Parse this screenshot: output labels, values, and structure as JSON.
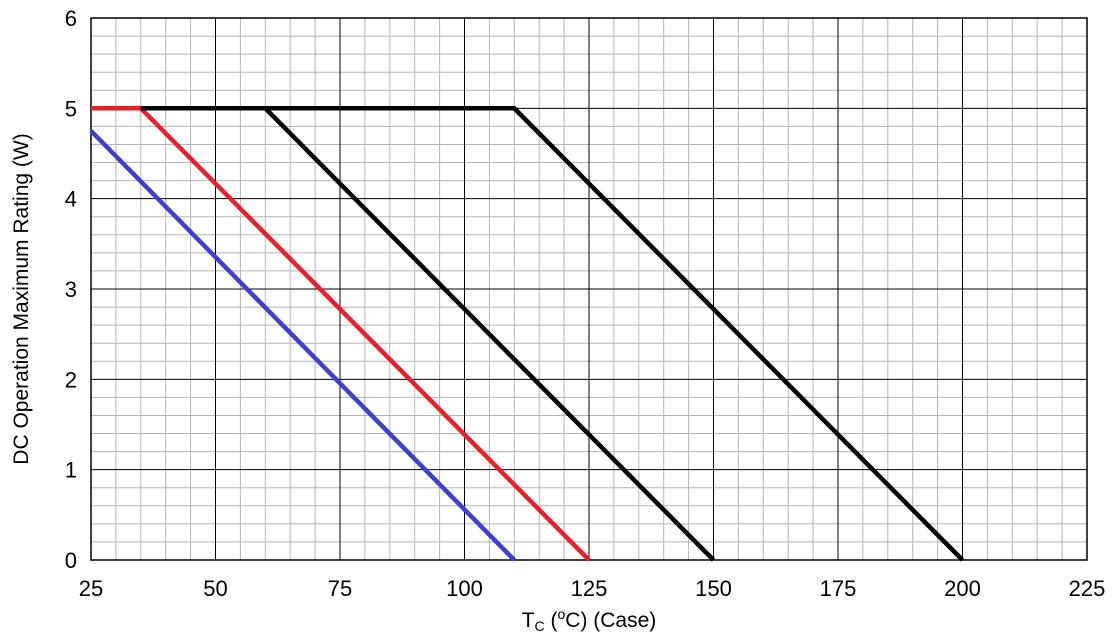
{
  "chart_data": {
    "type": "line",
    "title": "",
    "xlabel": "T_C (°C) (Case)",
    "xlabel_parts": {
      "main": "T",
      "sub": "C",
      "rest_a": " (",
      "sup": "o",
      "rest_b": "C) (Case)"
    },
    "ylabel": "DC Operation Maximum Rating (W)",
    "xlim": [
      25,
      225
    ],
    "ylim": [
      0,
      6
    ],
    "x_ticks": [
      25,
      50,
      75,
      100,
      125,
      150,
      175,
      200,
      225
    ],
    "y_ticks": [
      0,
      1,
      2,
      3,
      4,
      5,
      6
    ],
    "x_minor_step": 5,
    "y_minor_step": 0.2,
    "grid": true,
    "legend": "none",
    "series": [
      {
        "color": "#4040cc",
        "points": [
          [
            25,
            4.75
          ],
          [
            110,
            0
          ]
        ]
      },
      {
        "color": "#e8202a",
        "points": [
          [
            25,
            5
          ],
          [
            35,
            5
          ],
          [
            125,
            0
          ]
        ]
      },
      {
        "color": "#000000",
        "points": [
          [
            35,
            5
          ],
          [
            60,
            5
          ],
          [
            150,
            0
          ]
        ]
      },
      {
        "color": "#000000",
        "points": [
          [
            60,
            5
          ],
          [
            110,
            5
          ],
          [
            200,
            0
          ]
        ]
      }
    ]
  }
}
